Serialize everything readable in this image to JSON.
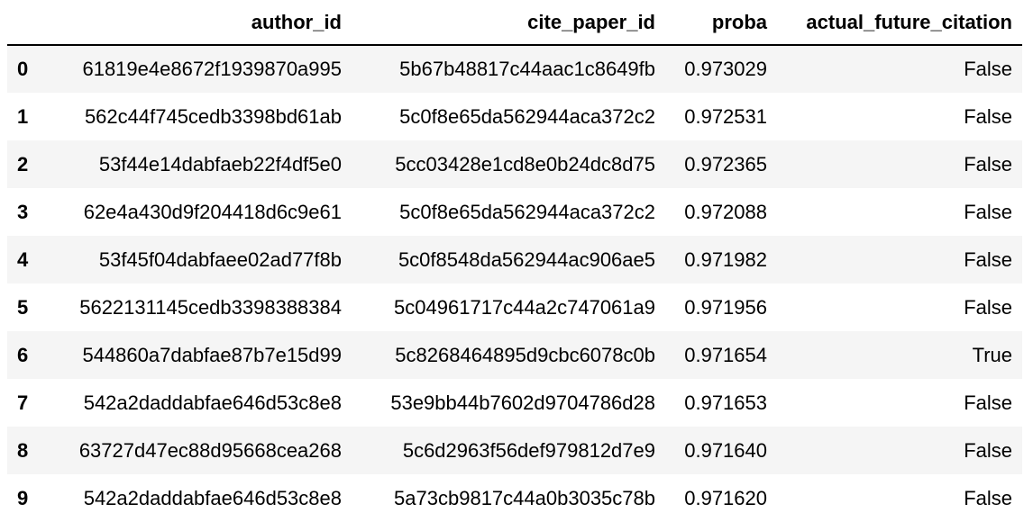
{
  "table": {
    "columns": [
      "",
      "author_id",
      "cite_paper_id",
      "proba",
      "actual_future_citation"
    ],
    "rows": [
      {
        "index": "0",
        "author_id": "61819e4e8672f1939870a995",
        "cite_paper_id": "5b67b48817c44aac1c8649fb",
        "proba": "0.973029",
        "actual_future_citation": "False"
      },
      {
        "index": "1",
        "author_id": "562c44f745cedb3398bd61ab",
        "cite_paper_id": "5c0f8e65da562944aca372c2",
        "proba": "0.972531",
        "actual_future_citation": "False"
      },
      {
        "index": "2",
        "author_id": "53f44e14dabfaeb22f4df5e0",
        "cite_paper_id": "5cc03428e1cd8e0b24dc8d75",
        "proba": "0.972365",
        "actual_future_citation": "False"
      },
      {
        "index": "3",
        "author_id": "62e4a430d9f204418d6c9e61",
        "cite_paper_id": "5c0f8e65da562944aca372c2",
        "proba": "0.972088",
        "actual_future_citation": "False"
      },
      {
        "index": "4",
        "author_id": "53f45f04dabfaee02ad77f8b",
        "cite_paper_id": "5c0f8548da562944ac906ae5",
        "proba": "0.971982",
        "actual_future_citation": "False"
      },
      {
        "index": "5",
        "author_id": "5622131145cedb3398388384",
        "cite_paper_id": "5c04961717c44a2c747061a9",
        "proba": "0.971956",
        "actual_future_citation": "False"
      },
      {
        "index": "6",
        "author_id": "544860a7dabfae87b7e15d99",
        "cite_paper_id": "5c8268464895d9cbc6078c0b",
        "proba": "0.971654",
        "actual_future_citation": "True"
      },
      {
        "index": "7",
        "author_id": "542a2daddabfae646d53c8e8",
        "cite_paper_id": "53e9bb44b7602d9704786d28",
        "proba": "0.971653",
        "actual_future_citation": "False"
      },
      {
        "index": "8",
        "author_id": "63727d47ec88d95668cea268",
        "cite_paper_id": "5c6d2963f56def979812d7e9",
        "proba": "0.971640",
        "actual_future_citation": "False"
      },
      {
        "index": "9",
        "author_id": "542a2daddabfae646d53c8e8",
        "cite_paper_id": "5a73cb9817c44a0b3035c78b",
        "proba": "0.971620",
        "actual_future_citation": "False"
      }
    ]
  }
}
